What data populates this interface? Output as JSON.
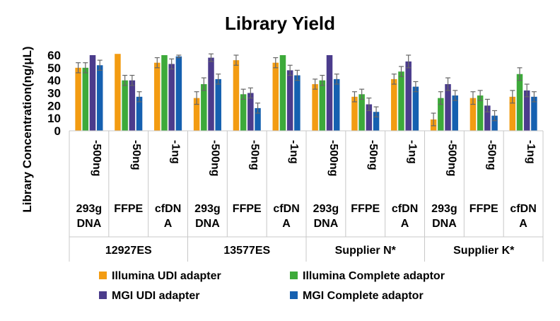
{
  "chart_data": {
    "type": "bar",
    "title": "Library Yield",
    "ylabel": "Library Concentration(ng/μL)",
    "xlabel": "",
    "ylim": [
      0,
      60
    ],
    "yticks": [
      0,
      10,
      20,
      30,
      40,
      50,
      60
    ],
    "legend_position": "bottom",
    "grid": false,
    "groups": [
      {
        "label": "12927ES",
        "categories": [
          {
            "amount": "-500ng",
            "label_lines": [
              "293g",
              "DNA"
            ]
          },
          {
            "amount": "-50ng",
            "label_lines": [
              "FFPE"
            ]
          },
          {
            "amount": "-1ng",
            "label_lines": [
              "cfDN",
              "A"
            ]
          }
        ]
      },
      {
        "label": "13577ES",
        "categories": [
          {
            "amount": "-500ng",
            "label_lines": [
              "293g",
              "DNA"
            ]
          },
          {
            "amount": "-50ng",
            "label_lines": [
              "FFPE"
            ]
          },
          {
            "amount": "-1ng",
            "label_lines": [
              "cfDN",
              "A"
            ]
          }
        ]
      },
      {
        "label": "Supplier N*",
        "categories": [
          {
            "amount": "-500ng",
            "label_lines": [
              "293g",
              "DNA"
            ]
          },
          {
            "amount": "-50ng",
            "label_lines": [
              "FFPE"
            ]
          },
          {
            "amount": "-1ng",
            "label_lines": [
              "cfDN",
              "A"
            ]
          }
        ]
      },
      {
        "label": "Supplier K*",
        "categories": [
          {
            "amount": "-500ng",
            "label_lines": [
              "293g",
              "DNA"
            ]
          },
          {
            "amount": "-50ng",
            "label_lines": [
              "FFPE"
            ]
          },
          {
            "amount": "-1ng",
            "label_lines": [
              "cfDN",
              "A"
            ]
          }
        ]
      }
    ],
    "series": [
      {
        "name": "Illumina UDI adapter",
        "color": "#F39C12",
        "values": [
          50,
          61,
          54,
          26,
          56,
          54,
          37,
          27,
          41,
          9,
          26,
          27
        ],
        "errors": [
          4,
          0,
          4,
          5,
          4,
          4,
          4,
          4,
          4,
          5,
          5,
          5
        ]
      },
      {
        "name": "Illumina Complete adaptor",
        "color": "#3DAA3A",
        "values": [
          50,
          40,
          60,
          37,
          29,
          60,
          40,
          29,
          47,
          26,
          28,
          45
        ],
        "errors": [
          4,
          4,
          0,
          5,
          4,
          0,
          4,
          4,
          4,
          5,
          4,
          5
        ]
      },
      {
        "name": "MGI UDI adapter",
        "color": "#4B3C8C",
        "values": [
          60,
          40,
          53,
          58,
          30,
          48,
          60,
          21,
          55,
          37,
          20,
          32
        ],
        "errors": [
          0,
          4,
          4,
          3,
          4,
          4,
          0,
          5,
          5,
          5,
          5,
          5
        ]
      },
      {
        "name": "MGI Complete adaptor",
        "color": "#1560B0",
        "values": [
          52,
          27,
          59,
          41,
          18,
          44,
          41,
          15,
          35,
          28,
          12,
          27
        ],
        "errors": [
          4,
          4,
          1,
          4,
          4,
          4,
          4,
          4,
          4,
          4,
          4,
          4
        ]
      }
    ]
  }
}
